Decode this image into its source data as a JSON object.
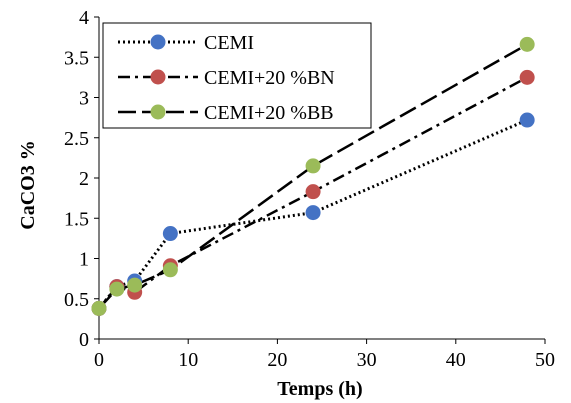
{
  "chart_data": {
    "type": "line",
    "xlabel": "Temps (h)",
    "ylabel": "CaCO3 %",
    "xlim": [
      0,
      50
    ],
    "ylim": [
      0,
      4
    ],
    "x_ticks": [
      0,
      10,
      20,
      30,
      40,
      50
    ],
    "y_ticks": [
      0,
      0.5,
      1,
      1.5,
      2,
      2.5,
      3,
      3.5,
      4
    ],
    "x_tick_labels": [
      "0",
      "10",
      "20",
      "30",
      "40",
      "50"
    ],
    "y_tick_labels": [
      "0",
      "0.5",
      "1",
      "1.5",
      "2",
      "2.5",
      "3",
      "3.5",
      "4"
    ],
    "grid": false,
    "legend_position": "top-left",
    "series": [
      {
        "name": "CEMI",
        "color": "#4472c4",
        "line_style": "dotted",
        "points": [
          [
            0,
            0.38
          ],
          [
            2,
            0.65
          ],
          [
            4,
            0.72
          ],
          [
            8,
            1.31
          ],
          [
            24,
            1.57
          ],
          [
            48,
            2.72
          ]
        ]
      },
      {
        "name": "CEMI+20 %BN",
        "color": "#c0504d",
        "line_style": "dash-dot",
        "points": [
          [
            0,
            0.38
          ],
          [
            2,
            0.65
          ],
          [
            4,
            0.58
          ],
          [
            8,
            0.91
          ],
          [
            24,
            1.83
          ],
          [
            48,
            3.25
          ]
        ]
      },
      {
        "name": "CEMI+20 %BB",
        "color": "#9bbb59",
        "line_style": "long-dash",
        "points": [
          [
            0,
            0.38
          ],
          [
            2,
            0.62
          ],
          [
            4,
            0.67
          ],
          [
            8,
            0.86
          ],
          [
            24,
            2.15
          ],
          [
            48,
            3.66
          ]
        ]
      }
    ]
  }
}
